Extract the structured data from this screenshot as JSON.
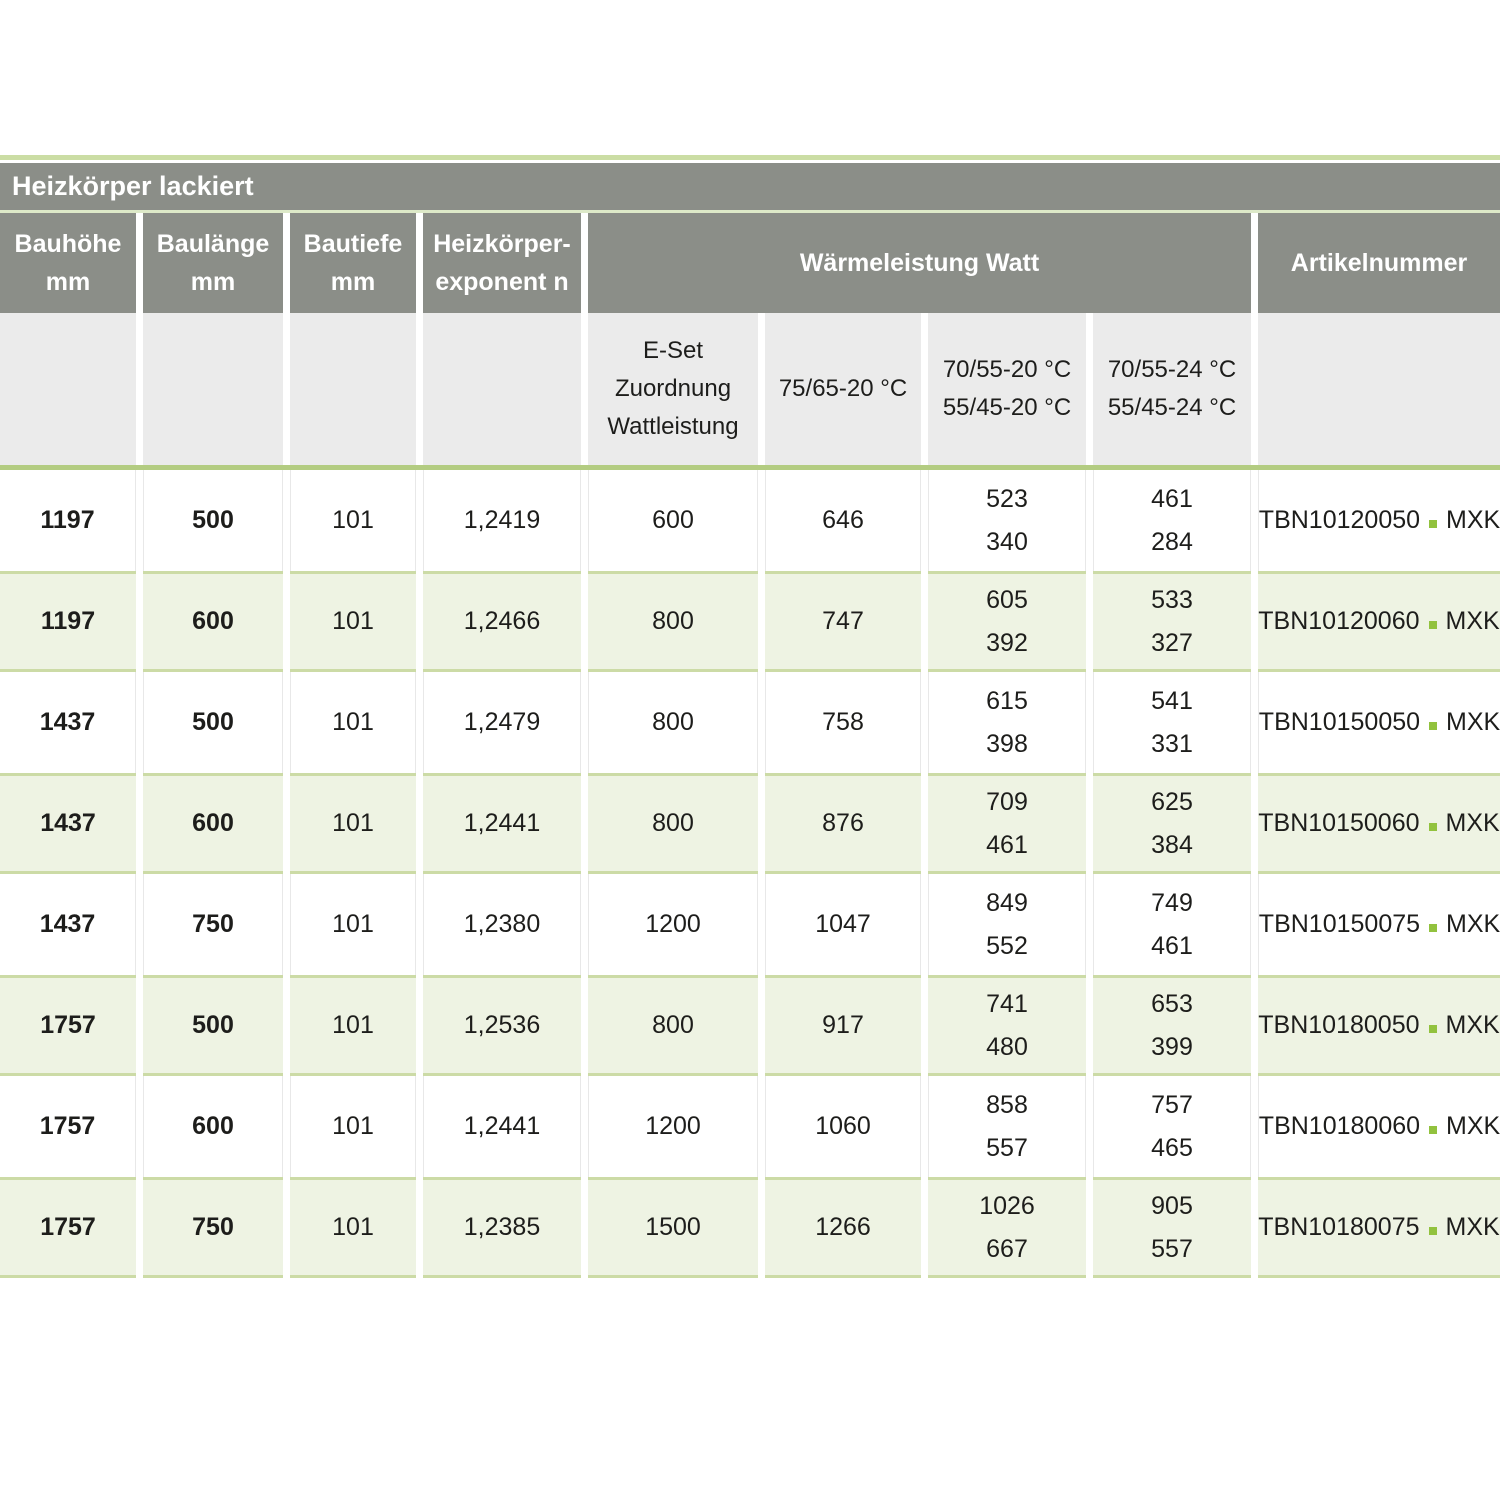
{
  "title": "Heizkörper lackiert",
  "colors": {
    "header_gray": "#8b8e88",
    "subheader_gray": "#ebebeb",
    "row_green": "#eef3e3",
    "accent_green": "#b3cc81",
    "dot_green": "#92c23e"
  },
  "header": {
    "col_bauhoehe": {
      "line1": "Bauhöhe",
      "line2": "mm"
    },
    "col_baulaenge": {
      "line1": "Baulänge",
      "line2": "mm"
    },
    "col_bautiefe": {
      "line1": "Bautiefe",
      "line2": "mm"
    },
    "col_exponent": {
      "line1": "Heizkörper-",
      "line2": "exponent n"
    },
    "watt_group": "Wärmeleistung Watt",
    "col_artikel": "Artikelnummer"
  },
  "subheader": {
    "eset": {
      "line1": "E-Set",
      "line2": "Zuordnung",
      "line3": "Wattleistung"
    },
    "t7565": "75/65-20 °C",
    "t20": {
      "line1": "70/55-20 °C",
      "line2": "55/45-20 °C"
    },
    "t24": {
      "line1": "70/55-24 °C",
      "line2": "55/45-24 °C"
    }
  },
  "rows": [
    {
      "bauhoehe": "1197",
      "baulaenge": "500",
      "bautiefe": "101",
      "exponent": "1,2419",
      "eset": "600",
      "w7565": "646",
      "w20_high": "523",
      "w20_low": "340",
      "w24_high": "461",
      "w24_low": "284",
      "artikel_prefix": "TBN10120050",
      "artikel_suffix": "MXK"
    },
    {
      "bauhoehe": "1197",
      "baulaenge": "600",
      "bautiefe": "101",
      "exponent": "1,2466",
      "eset": "800",
      "w7565": "747",
      "w20_high": "605",
      "w20_low": "392",
      "w24_high": "533",
      "w24_low": "327",
      "artikel_prefix": "TBN10120060",
      "artikel_suffix": "MXK"
    },
    {
      "bauhoehe": "1437",
      "baulaenge": "500",
      "bautiefe": "101",
      "exponent": "1,2479",
      "eset": "800",
      "w7565": "758",
      "w20_high": "615",
      "w20_low": "398",
      "w24_high": "541",
      "w24_low": "331",
      "artikel_prefix": "TBN10150050",
      "artikel_suffix": "MXK"
    },
    {
      "bauhoehe": "1437",
      "baulaenge": "600",
      "bautiefe": "101",
      "exponent": "1,2441",
      "eset": "800",
      "w7565": "876",
      "w20_high": "709",
      "w20_low": "461",
      "w24_high": "625",
      "w24_low": "384",
      "artikel_prefix": "TBN10150060",
      "artikel_suffix": "MXK"
    },
    {
      "bauhoehe": "1437",
      "baulaenge": "750",
      "bautiefe": "101",
      "exponent": "1,2380",
      "eset": "1200",
      "w7565": "1047",
      "w20_high": "849",
      "w20_low": "552",
      "w24_high": "749",
      "w24_low": "461",
      "artikel_prefix": "TBN10150075",
      "artikel_suffix": "MXK"
    },
    {
      "bauhoehe": "1757",
      "baulaenge": "500",
      "bautiefe": "101",
      "exponent": "1,2536",
      "eset": "800",
      "w7565": "917",
      "w20_high": "741",
      "w20_low": "480",
      "w24_high": "653",
      "w24_low": "399",
      "artikel_prefix": "TBN10180050",
      "artikel_suffix": "MXK"
    },
    {
      "bauhoehe": "1757",
      "baulaenge": "600",
      "bautiefe": "101",
      "exponent": "1,2441",
      "eset": "1200",
      "w7565": "1060",
      "w20_high": "858",
      "w20_low": "557",
      "w24_high": "757",
      "w24_low": "465",
      "artikel_prefix": "TBN10180060",
      "artikel_suffix": "MXK"
    },
    {
      "bauhoehe": "1757",
      "baulaenge": "750",
      "bautiefe": "101",
      "exponent": "1,2385",
      "eset": "1500",
      "w7565": "1266",
      "w20_high": "1026",
      "w20_low": "667",
      "w24_high": "905",
      "w24_low": "557",
      "artikel_prefix": "TBN10180075",
      "artikel_suffix": "MXK"
    }
  ]
}
